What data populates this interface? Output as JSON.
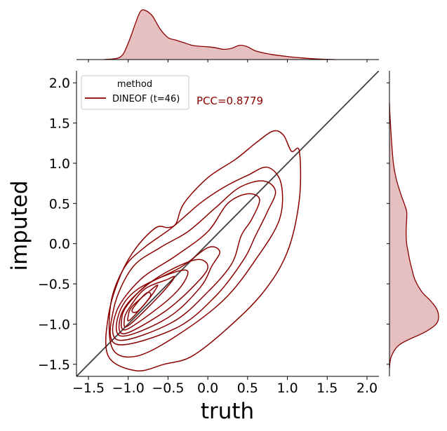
{
  "chart_data": {
    "type": "kde-jointplot",
    "xlabel": "truth",
    "ylabel": "imputed",
    "xlim": [
      -1.65,
      2.15
    ],
    "ylim": [
      -1.65,
      2.15
    ],
    "xticks": [
      -1.5,
      -1.0,
      -0.5,
      0.0,
      0.5,
      1.0,
      1.5,
      2.0
    ],
    "xtick_labels": [
      "−1.5",
      "−1.0",
      "−0.5",
      "0.0",
      "0.5",
      "1.0",
      "1.5",
      "2.0"
    ],
    "yticks": [
      -1.5,
      -1.0,
      -0.5,
      0.0,
      0.5,
      1.0,
      1.5,
      2.0
    ],
    "ytick_labels": [
      "−1.5",
      "−1.0",
      "−0.5",
      "0.0",
      "0.5",
      "1.0",
      "1.5",
      "2.0"
    ],
    "legend": {
      "title": "method",
      "entries": [
        "DINEOF (t=46)"
      ],
      "placement": "upper-left"
    },
    "annotation": "PCC=0.8779",
    "reference_line": {
      "from": [
        -1.65,
        -1.65
      ],
      "to": [
        2.15,
        2.15
      ],
      "color": "#404040"
    },
    "series_color": "#8b0000",
    "fill_color": "#e3b9b9",
    "marginal_x": {
      "x": [
        -1.3,
        -1.1,
        -1.0,
        -0.9,
        -0.85,
        -0.8,
        -0.7,
        -0.6,
        -0.5,
        -0.4,
        -0.3,
        -0.2,
        -0.1,
        0.0,
        0.1,
        0.2,
        0.3,
        0.4,
        0.5,
        0.6,
        0.8,
        1.0,
        1.2,
        1.4,
        1.6
      ],
      "density": [
        0.0,
        0.05,
        0.32,
        0.75,
        0.93,
        0.97,
        0.86,
        0.6,
        0.43,
        0.38,
        0.33,
        0.28,
        0.26,
        0.25,
        0.23,
        0.2,
        0.22,
        0.28,
        0.25,
        0.17,
        0.1,
        0.06,
        0.03,
        0.01,
        0.0
      ]
    },
    "marginal_y": {
      "y": [
        -1.55,
        -1.4,
        -1.25,
        -1.1,
        -1.0,
        -0.9,
        -0.8,
        -0.7,
        -0.6,
        -0.45,
        -0.3,
        -0.2,
        -0.1,
        0.0,
        0.15,
        0.3,
        0.4,
        0.5,
        0.6,
        0.8,
        1.0,
        1.3,
        1.6,
        1.75
      ],
      "density": [
        0.0,
        0.04,
        0.22,
        0.72,
        0.95,
        1.0,
        0.95,
        0.82,
        0.66,
        0.52,
        0.45,
        0.41,
        0.38,
        0.35,
        0.34,
        0.35,
        0.35,
        0.3,
        0.24,
        0.14,
        0.08,
        0.04,
        0.01,
        0.0
      ]
    },
    "contours": [
      [
        [
          -0.88,
          -0.84
        ],
        [
          -0.72,
          -0.65
        ],
        [
          -0.78,
          -0.62
        ],
        [
          -0.95,
          -0.82
        ]
      ],
      [
        [
          -0.98,
          -0.95
        ],
        [
          -0.75,
          -0.7
        ],
        [
          -0.63,
          -0.52
        ],
        [
          -0.72,
          -0.58
        ],
        [
          -0.95,
          -0.78
        ],
        [
          -1.0,
          -0.9
        ]
      ],
      [
        [
          -1.0,
          -1.02
        ],
        [
          -0.62,
          -0.66
        ],
        [
          -0.42,
          -0.42
        ],
        [
          -0.52,
          -0.45
        ],
        [
          -0.8,
          -0.57
        ],
        [
          -1.0,
          -0.82
        ],
        [
          -1.05,
          -0.95
        ]
      ],
      [
        [
          -1.03,
          -1.07
        ],
        [
          -0.6,
          -0.78
        ],
        [
          -0.35,
          -0.55
        ],
        [
          -0.25,
          -0.35
        ],
        [
          -0.4,
          -0.35
        ],
        [
          -0.75,
          -0.5
        ],
        [
          -1.0,
          -0.75
        ],
        [
          -1.08,
          -0.92
        ]
      ],
      [
        [
          -1.05,
          -1.12
        ],
        [
          -0.55,
          -0.85
        ],
        [
          -0.2,
          -0.55
        ],
        [
          0.0,
          -0.3
        ],
        [
          -0.15,
          -0.2
        ],
        [
          -0.6,
          -0.4
        ],
        [
          -0.95,
          -0.68
        ],
        [
          -1.1,
          -0.92
        ]
      ],
      [
        [
          -1.08,
          -1.15
        ],
        [
          -0.5,
          -0.92
        ],
        [
          -0.1,
          -0.55
        ],
        [
          0.05,
          -0.28
        ],
        [
          0.15,
          -0.1
        ],
        [
          0.0,
          -0.05
        ],
        [
          -0.35,
          -0.3
        ],
        [
          -0.9,
          -0.58
        ],
        [
          -1.12,
          -0.88
        ]
      ],
      [
        [
          -1.12,
          -1.2
        ],
        [
          -0.45,
          -0.98
        ],
        [
          0.0,
          -0.6
        ],
        [
          0.3,
          -0.25
        ],
        [
          0.42,
          0.1
        ],
        [
          0.55,
          0.3
        ],
        [
          0.65,
          0.55
        ],
        [
          0.5,
          0.62
        ],
        [
          0.25,
          0.5
        ],
        [
          0.0,
          0.15
        ],
        [
          -0.4,
          -0.15
        ],
        [
          -0.85,
          -0.45
        ],
        [
          -1.15,
          -0.85
        ]
      ],
      [
        [
          -1.15,
          -1.25
        ],
        [
          -0.4,
          -1.05
        ],
        [
          0.1,
          -0.65
        ],
        [
          0.45,
          -0.2
        ],
        [
          0.6,
          0.1
        ],
        [
          0.75,
          0.4
        ],
        [
          0.85,
          0.65
        ],
        [
          0.7,
          0.78
        ],
        [
          0.4,
          0.7
        ],
        [
          0.1,
          0.45
        ],
        [
          -0.25,
          0.15
        ],
        [
          -0.6,
          -0.05
        ],
        [
          -0.95,
          -0.3
        ],
        [
          -1.18,
          -0.8
        ]
      ],
      [
        [
          -1.2,
          -1.3
        ],
        [
          -0.9,
          -1.4
        ],
        [
          -0.4,
          -1.15
        ],
        [
          0.2,
          -0.7
        ],
        [
          0.6,
          -0.2
        ],
        [
          0.9,
          0.3
        ],
        [
          0.92,
          0.75
        ],
        [
          0.75,
          0.95
        ],
        [
          0.5,
          0.85
        ],
        [
          0.2,
          0.7
        ],
        [
          -0.1,
          0.5
        ],
        [
          -0.45,
          0.2
        ],
        [
          -0.8,
          -0.05
        ],
        [
          -1.05,
          -0.3
        ],
        [
          -1.22,
          -0.75
        ]
      ],
      [
        [
          -1.25,
          -1.4
        ],
        [
          -0.9,
          -1.58
        ],
        [
          -0.55,
          -1.5
        ],
        [
          -0.2,
          -1.4
        ],
        [
          0.25,
          -1.05
        ],
        [
          0.7,
          -0.6
        ],
        [
          1.0,
          -0.1
        ],
        [
          1.15,
          0.55
        ],
        [
          1.15,
          1.15
        ],
        [
          1.05,
          1.15
        ],
        [
          0.95,
          1.35
        ],
        [
          0.82,
          1.4
        ],
        [
          0.6,
          1.25
        ],
        [
          0.35,
          1.05
        ],
        [
          0.0,
          0.82
        ],
        [
          -0.3,
          0.5
        ],
        [
          -0.4,
          0.25
        ],
        [
          -0.5,
          0.2
        ],
        [
          -0.65,
          0.2
        ],
        [
          -0.9,
          -0.05
        ],
        [
          -1.1,
          -0.4
        ],
        [
          -1.25,
          -0.9
        ]
      ]
    ]
  }
}
